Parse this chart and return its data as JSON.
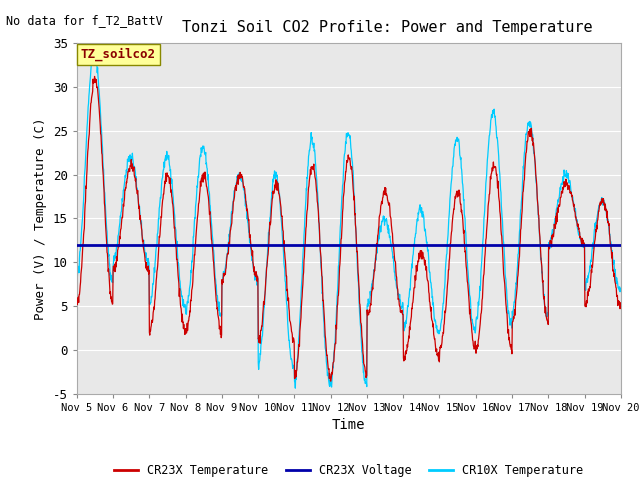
{
  "title": "Tonzi Soil CO2 Profile: Power and Temperature",
  "subtitle": "No data for f_T2_BattV",
  "xlabel": "Time",
  "ylabel": "Power (V) / Temperature (C)",
  "ylim": [
    -5,
    35
  ],
  "yticks": [
    -5,
    0,
    5,
    10,
    15,
    20,
    25,
    30,
    35
  ],
  "xtick_labels": [
    "Nov 5",
    "Nov 6",
    "Nov 7",
    "Nov 8",
    "Nov 9",
    "Nov 10",
    "Nov 11",
    "Nov 12",
    "Nov 13",
    "Nov 14",
    "Nov 15",
    "Nov 16",
    "Nov 17",
    "Nov 18",
    "Nov 19",
    "Nov 20"
  ],
  "voltage_value": 12.0,
  "cr23x_color": "#cc0000",
  "cr10x_color": "#00ccff",
  "voltage_color": "#0000aa",
  "fig_bg_color": "#ffffff",
  "plot_bg_color": "#e8e8e8",
  "legend_box_color": "#ffff99",
  "legend_box_text": "TZ_soilco2",
  "legend_entries": [
    "CR23X Temperature",
    "CR23X Voltage",
    "CR10X Temperature"
  ],
  "legend_colors": [
    "#cc0000",
    "#0000aa",
    "#00ccff"
  ],
  "peaks_cr23x": [
    31,
    21,
    20,
    20,
    20,
    19,
    21,
    22,
    18,
    11,
    18,
    21,
    25,
    19,
    17
  ],
  "troughs_cr23x": [
    5,
    9,
    2,
    2,
    8,
    1,
    -3,
    -3,
    4,
    -1,
    0,
    0,
    3,
    12,
    5
  ],
  "peaks_cr10x": [
    34,
    22,
    22,
    23,
    20,
    20,
    24,
    25,
    15,
    16,
    24,
    27,
    26,
    20,
    17
  ],
  "troughs_cr10x": [
    8,
    10,
    5,
    4,
    8,
    -2,
    -4,
    -4,
    5,
    2,
    2,
    3,
    4,
    12,
    7
  ]
}
